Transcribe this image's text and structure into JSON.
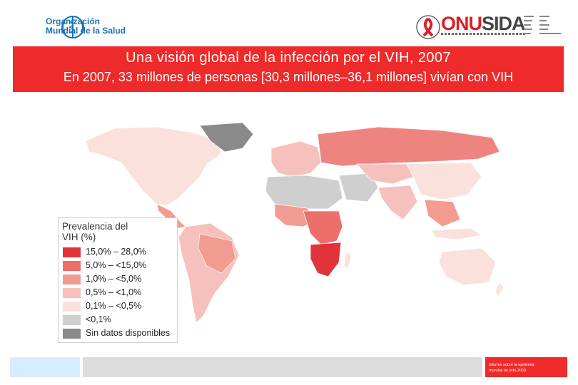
{
  "header": {
    "who_name_line1": "Organización",
    "who_name_line2": "Mundial de la Salud",
    "unaids_prefix": "ONU",
    "unaids_suffix": "SIDA"
  },
  "title": {
    "line1": "Una visión global de la infección por el VIH, 2007",
    "line2": "En 2007, 33 millones de personas [30,3 millones–36,1 millones] vivían con VIH"
  },
  "legend": {
    "title_line1": "Prevalencia del",
    "title_line2": "VIH (%)",
    "items": [
      {
        "label": "15,0% – 28,0%",
        "color": "#e2323a"
      },
      {
        "label": "5,0% – <15,0%",
        "color": "#ec6f6a"
      },
      {
        "label": "1,0% – <5,0%",
        "color": "#f29b91"
      },
      {
        "label": "0,5% – <1,0%",
        "color": "#f6c1bc"
      },
      {
        "label": "0,1% – <0,5%",
        "color": "#fbe1dc"
      },
      {
        "label": "<0,1%",
        "color": "#cfcfcf"
      },
      {
        "label": "Sin datos disponibles",
        "color": "#8a8a8a"
      }
    ]
  },
  "footer": {
    "report_line1": "Informe sobre la epidemia",
    "report_line2": "mundial de sida 2008"
  },
  "colors": {
    "title_bar": "#ef2a2a",
    "who_blue": "#1a73b8"
  }
}
